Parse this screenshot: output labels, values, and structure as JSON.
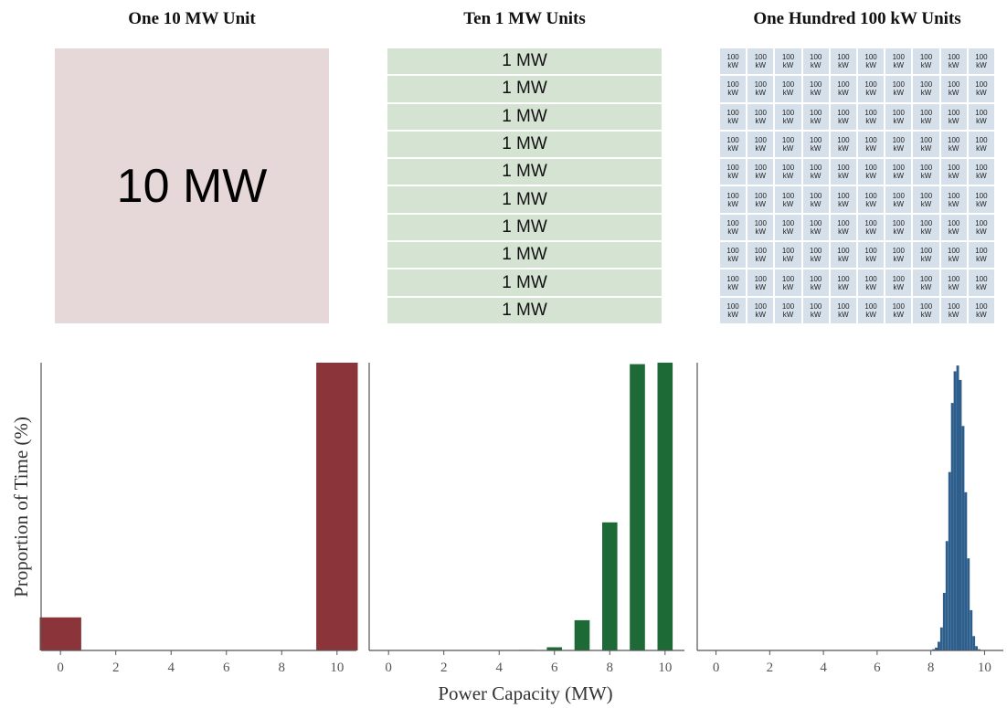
{
  "panels": [
    {
      "title": "One 10 MW Unit",
      "unit_label": "10 MW"
    },
    {
      "title": "Ten 1 MW Units",
      "unit_label": "1 MW",
      "unit_count": 10
    },
    {
      "title": "One Hundred 100 kW Units",
      "unit_label_top": "100",
      "unit_label_bottom": "kW",
      "unit_count": 100
    }
  ],
  "colors": {
    "single": "#8b353b",
    "ten": "#1e6a37",
    "hundred": "#2e5f8c",
    "single_bg": "#e6d7d8",
    "ten_bg": "#d5e3d3",
    "hundred_bg": "#d6e0ea"
  },
  "chart_data": [
    {
      "type": "bar",
      "name": "One 10 MW Unit",
      "x": [
        0,
        10
      ],
      "values": [
        11.5,
        100
      ],
      "ylim": [
        0,
        100
      ],
      "xlim": [
        -0.7,
        10.7
      ],
      "xticks": [
        0,
        2,
        4,
        6,
        8,
        10
      ],
      "bar_width": 1.5
    },
    {
      "type": "bar",
      "name": "Ten 1 MW Units",
      "x": [
        5,
        6,
        7,
        8,
        9,
        10
      ],
      "values": [
        0.2,
        1.1,
        10.5,
        44.5,
        99.5,
        100
      ],
      "ylim": [
        0,
        100
      ],
      "xlim": [
        -0.7,
        10.7
      ],
      "xticks": [
        0,
        2,
        4,
        6,
        8,
        10
      ],
      "bar_width": 0.55
    },
    {
      "type": "bar",
      "name": "One Hundred 100 kW Units",
      "x": [
        8.1,
        8.2,
        8.3,
        8.4,
        8.5,
        8.6,
        8.7,
        8.8,
        8.9,
        9.0,
        9.1,
        9.2,
        9.3,
        9.4,
        9.5,
        9.6,
        9.7,
        9.8
      ],
      "values": [
        0.4,
        1,
        3,
        8,
        20,
        38,
        62,
        86,
        97,
        99,
        94,
        78,
        55,
        32,
        14,
        5,
        1.5,
        0.4
      ],
      "ylim": [
        0,
        100
      ],
      "xlim": [
        -0.7,
        10.7
      ],
      "xticks": [
        0,
        2,
        4,
        6,
        8,
        10
      ],
      "bar_width": 0.1
    }
  ],
  "axes": {
    "ylabel": "Proportion of Time (%)",
    "xlabel": "Power Capacity (MW)"
  }
}
